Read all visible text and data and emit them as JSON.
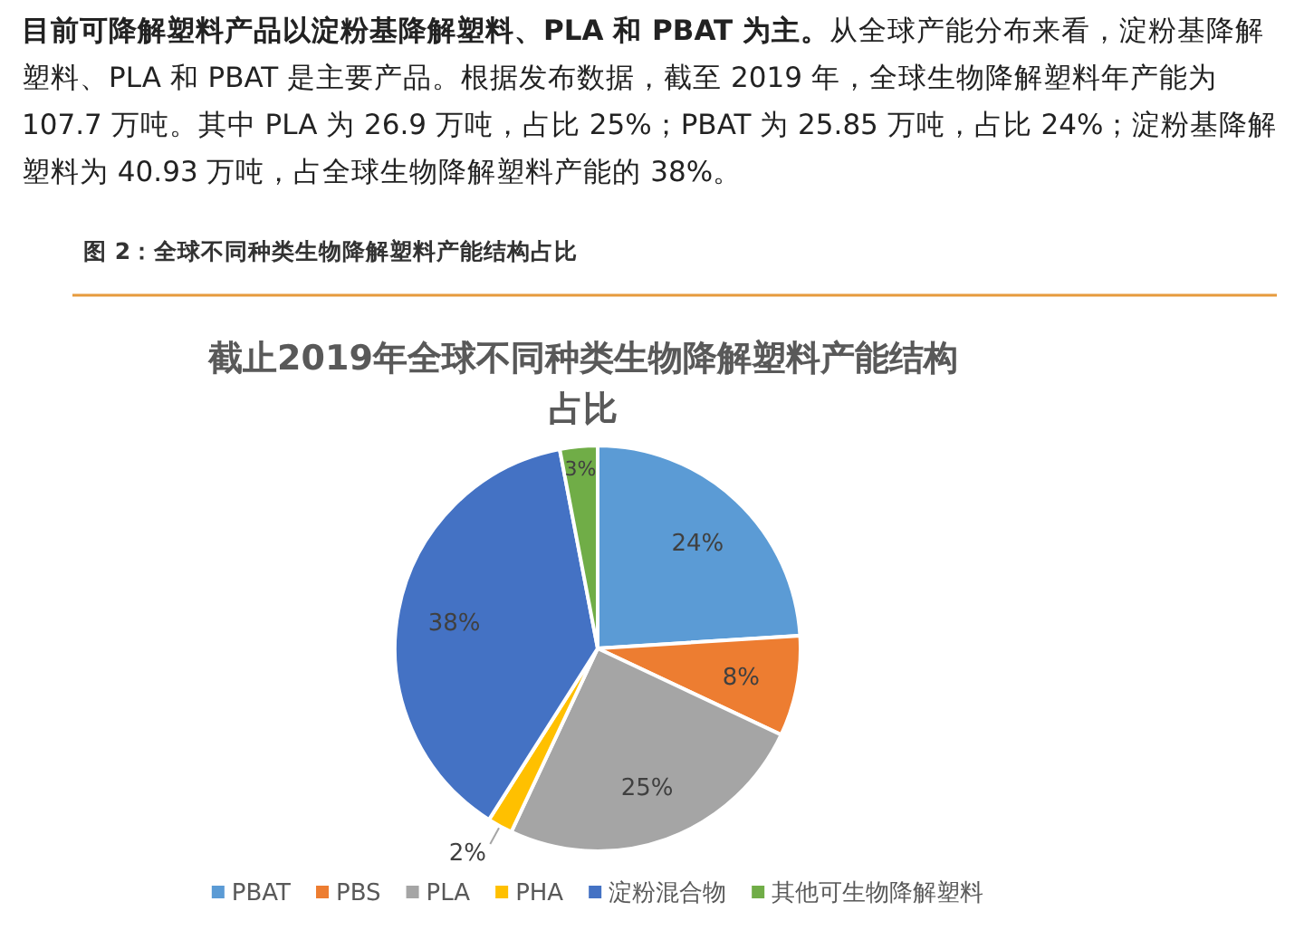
{
  "chart_data": {
    "type": "pie",
    "title": "截止2019年全球不同种类生物降解塑料产能结构占比",
    "annotations": [
      "**目前可降解塑料产品以淀粉基降解塑料、PLA 和 PBAT 为主。**从全球产能分布来看，淀粉基降解塑料、PLA 和 PBAT 是主要产品。根据发布数据，截至 2019 年，全球生物降解塑料年产能为 107.7 万吨。其中 PLA 为 26.9 万吨，占比 25%；PBAT 为 25.85 万吨，占比 24%；淀粉基降解塑料为 40.93 万吨，占全球生物降解塑料产能的 38%。",
      "图 2：全球不同种类生物降解塑料产能结构占比"
    ],
    "categories": [
      "PBAT",
      "PBS",
      "PLA",
      "PHA",
      "淀粉混合物",
      "其他可生物降解塑料"
    ],
    "values": [
      24,
      8,
      25,
      2,
      38,
      3
    ],
    "colors": [
      "#5b9bd5",
      "#ed7d31",
      "#a5a5a5",
      "#ffc000",
      "#4472c4",
      "#70ad47"
    ],
    "value_labels": [
      "24%",
      "8%",
      "25%",
      "2%",
      "38%",
      "3%"
    ],
    "legend": "bottom"
  }
}
